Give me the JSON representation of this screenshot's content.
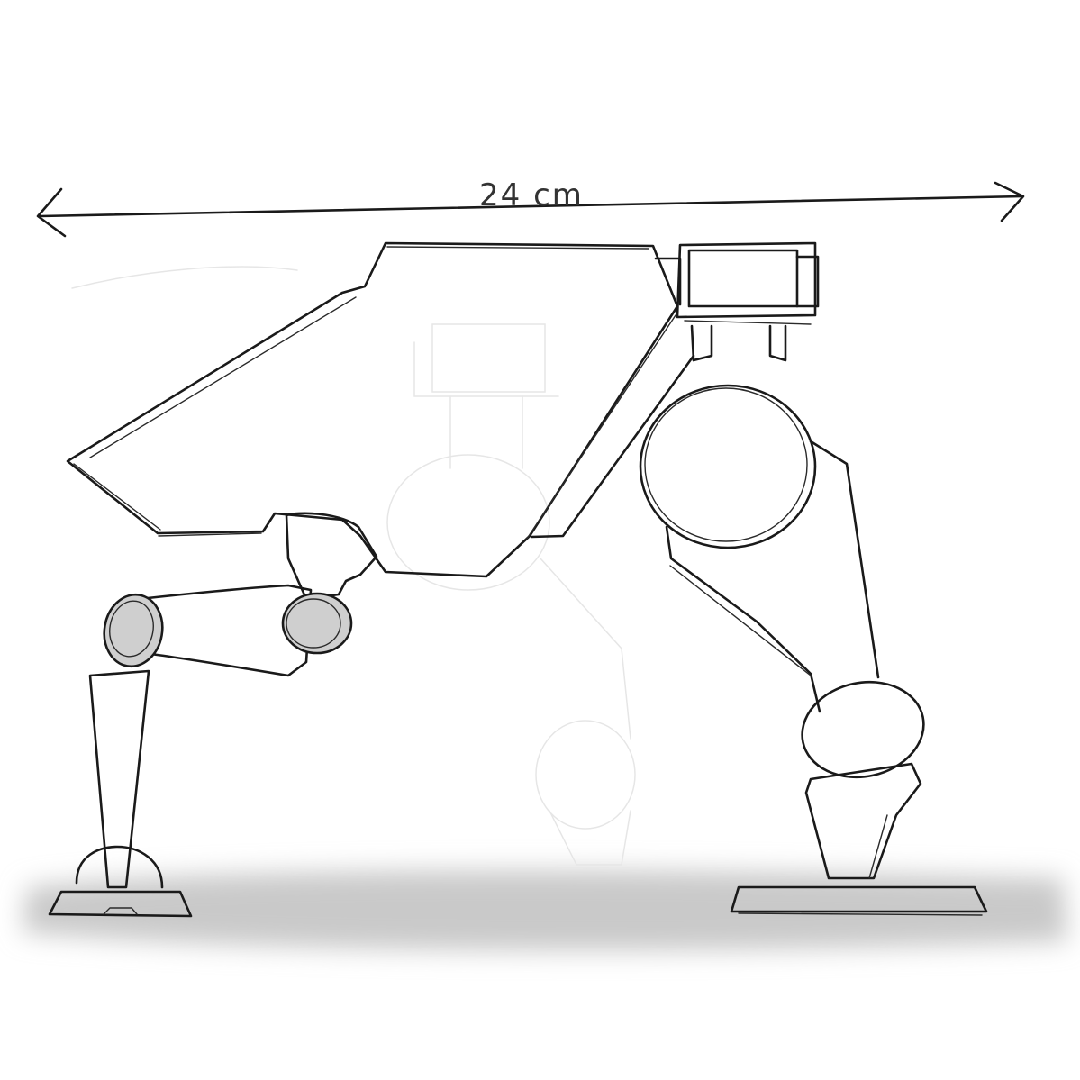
{
  "dimension": {
    "label": "24 cm"
  },
  "colors": {
    "ink": "#1a1a1a",
    "shading": "#cfcfcf",
    "ground_shadow": "#c4c4c4",
    "background": "#ffffff"
  }
}
